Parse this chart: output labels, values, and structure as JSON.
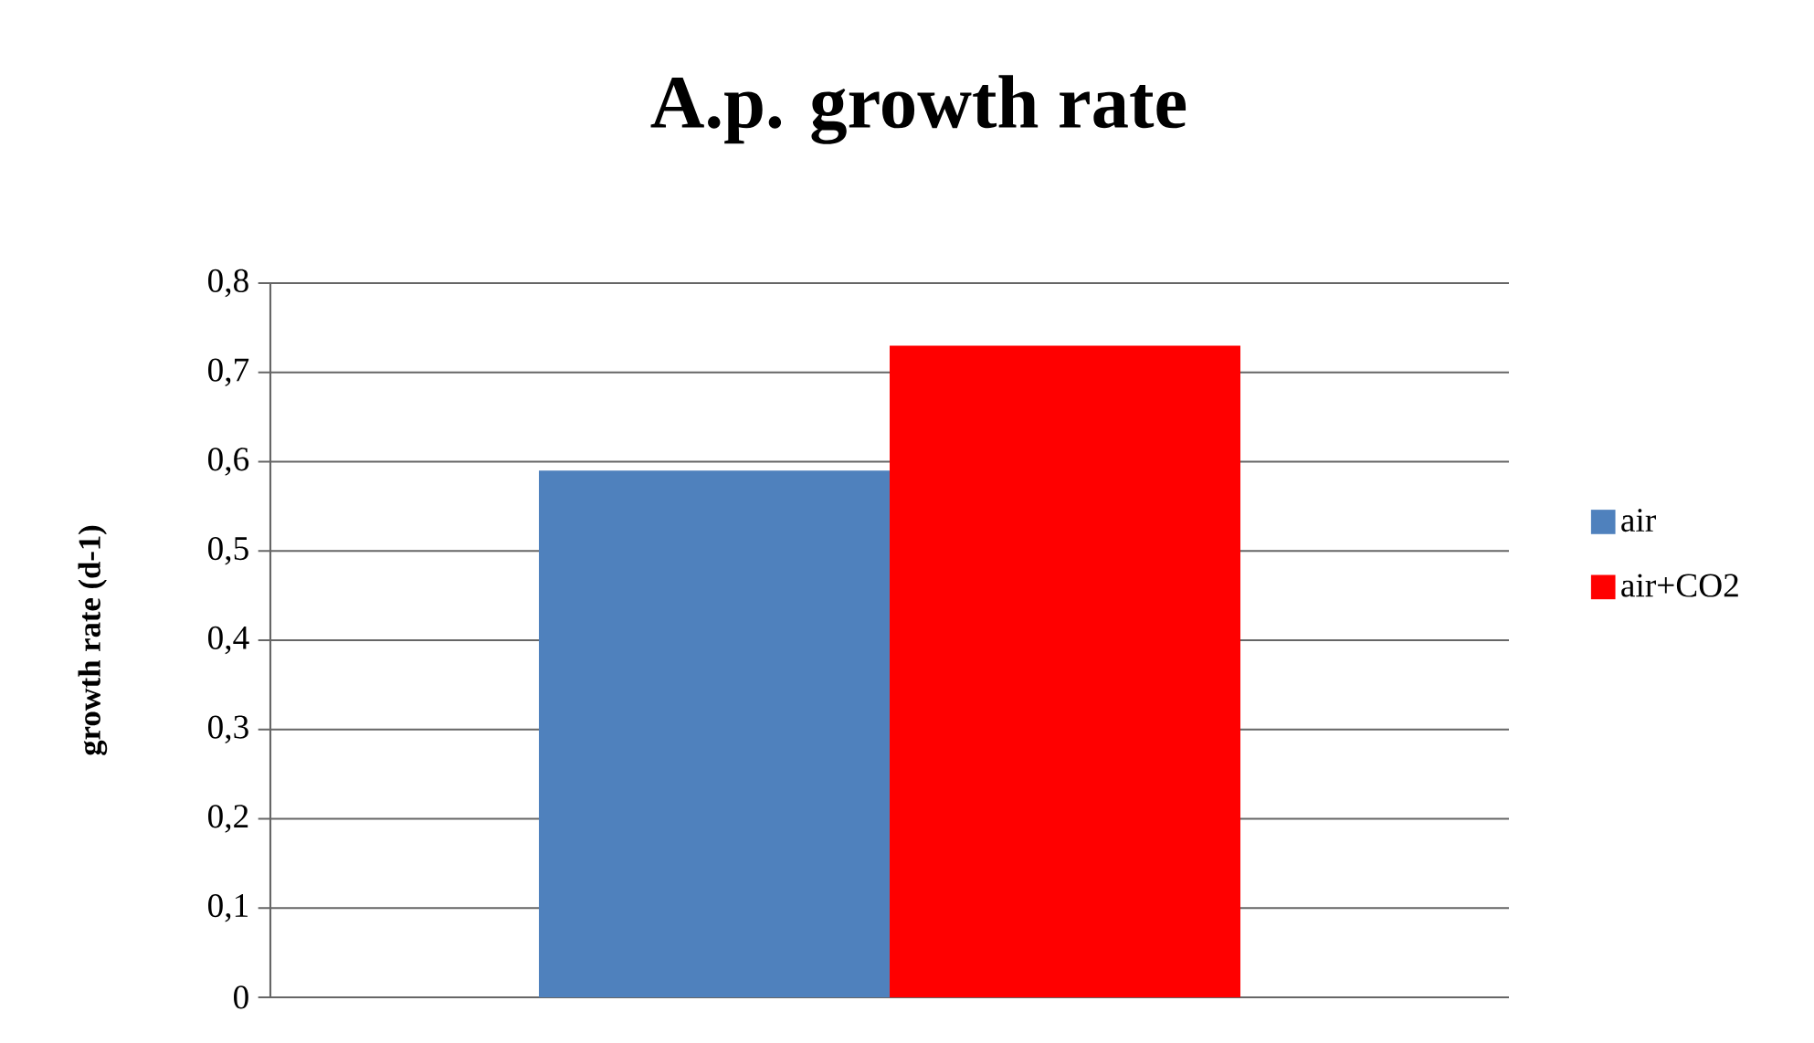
{
  "chart_data": {
    "type": "bar",
    "title": "A.p. growth rate",
    "ylabel": "growth rate (d-1)",
    "categories": [
      null
    ],
    "series": [
      {
        "name": "air",
        "color": "#4f81bd",
        "values": [
          0.59
        ]
      },
      {
        "name": "air+CO2",
        "color": "#ff0000",
        "values": [
          0.73
        ]
      }
    ],
    "ylim": [
      0,
      0.8
    ],
    "yticks": [
      0,
      {
        "value": 0.1,
        "label": "0,1"
      },
      {
        "value": 0.2,
        "label": "0,2"
      },
      {
        "value": 0.3,
        "label": "0,3"
      },
      {
        "value": 0.4,
        "label": "0,4"
      },
      {
        "value": 0.5,
        "label": "0,5"
      },
      {
        "value": 0.6,
        "label": "0,6"
      },
      {
        "value": 0.7,
        "label": "0,7"
      },
      {
        "value": 0.8,
        "label": "0,8"
      }
    ],
    "grid": "y",
    "legend": "right"
  }
}
